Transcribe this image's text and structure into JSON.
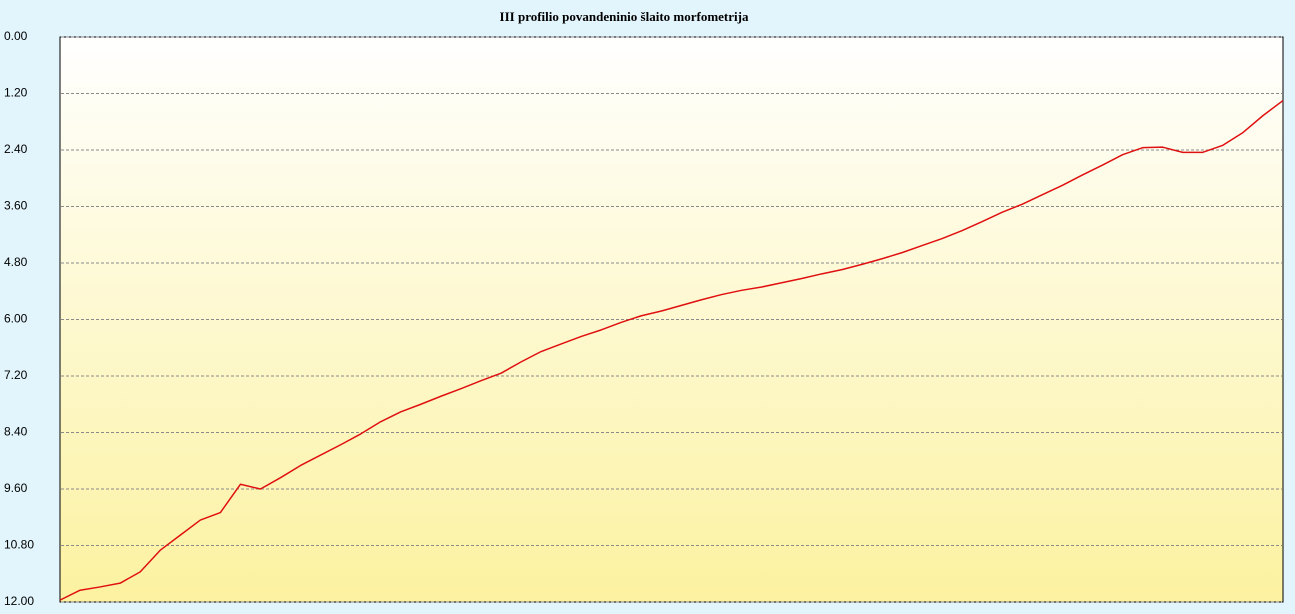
{
  "chart_data": {
    "type": "line",
    "title": "III profilio povandeninio šlaito morfometrija",
    "ylim": [
      12,
      0
    ],
    "yticks": [
      {
        "value": 0,
        "label": "0.00"
      },
      {
        "value": 1.2,
        "label": "1.20"
      },
      {
        "value": 2.4,
        "label": "2.40"
      },
      {
        "value": 3.6,
        "label": "3.60"
      },
      {
        "value": 4.8,
        "label": "4.80"
      },
      {
        "value": 6,
        "label": "6.00"
      },
      {
        "value": 7.2,
        "label": "7.20"
      },
      {
        "value": 8.4,
        "label": "8.40"
      },
      {
        "value": 9.6,
        "label": "9.60"
      },
      {
        "value": 10.8,
        "label": "10.80"
      },
      {
        "value": 12,
        "label": "12.00"
      }
    ],
    "grid": true,
    "color": "#e01010",
    "values": [
      11.96,
      11.75,
      11.68,
      11.6,
      11.36,
      10.9,
      10.58,
      10.26,
      10.1,
      9.5,
      9.6,
      9.36,
      9.1,
      8.88,
      8.66,
      8.43,
      8.17,
      7.96,
      7.8,
      7.63,
      7.47,
      7.3,
      7.14,
      6.9,
      6.68,
      6.52,
      6.36,
      6.22,
      6.06,
      5.92,
      5.82,
      5.7,
      5.58,
      5.47,
      5.38,
      5.31,
      5.22,
      5.13,
      5.03,
      4.94,
      4.83,
      4.71,
      4.58,
      4.43,
      4.28,
      4.11,
      3.92,
      3.72,
      3.55,
      3.35,
      3.15,
      2.93,
      2.72,
      2.5,
      2.35,
      2.34,
      2.45,
      2.45,
      2.3,
      2.03,
      1.67,
      1.35
    ]
  }
}
